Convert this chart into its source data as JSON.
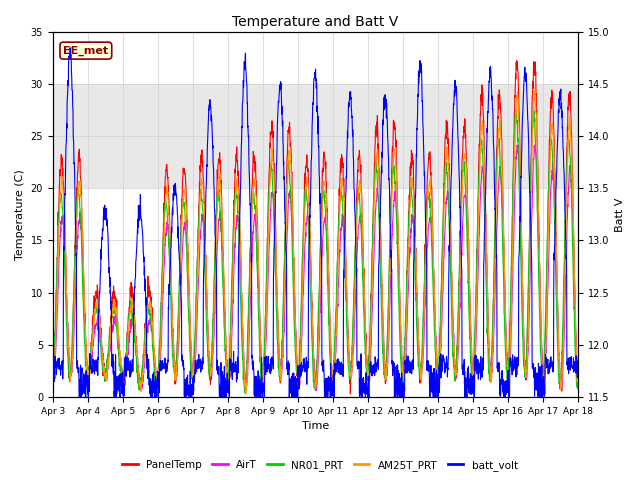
{
  "title": "Temperature and Batt V",
  "xlabel": "Time",
  "ylabel_left": "Temperature (C)",
  "ylabel_right": "Batt V",
  "ylim_left": [
    0,
    35
  ],
  "ylim_right": [
    11.5,
    15.0
  ],
  "yticks_left": [
    0,
    5,
    10,
    15,
    20,
    25,
    30,
    35
  ],
  "yticks_right": [
    11.5,
    12.0,
    12.5,
    13.0,
    13.5,
    14.0,
    14.5,
    15.0
  ],
  "shaded_region": [
    20,
    30
  ],
  "annotation_text": "EE_met",
  "colors": {
    "PanelTemp": "#ff0000",
    "AirT": "#ff00ff",
    "NR01_PRT": "#00cc00",
    "AM25T_PRT": "#ff9900",
    "batt_volt": "#0000ff"
  },
  "n_days": 15,
  "background_color": "#ffffff",
  "grid_color": "#d0d0d0",
  "shaded_color": "#e8e8e8",
  "xtick_labels": [
    "Apr 3",
    "Apr 4",
    "Apr 5",
    "Apr 6",
    "Apr 7",
    "Apr 8",
    "Apr 9",
    "Apr 10",
    "Apr 11",
    "Apr 12",
    "Apr 13",
    "Apr 14",
    "Apr 15",
    "Apr 16",
    "Apr 17",
    "Apr 18"
  ],
  "figsize": [
    6.4,
    4.8
  ],
  "dpi": 100
}
